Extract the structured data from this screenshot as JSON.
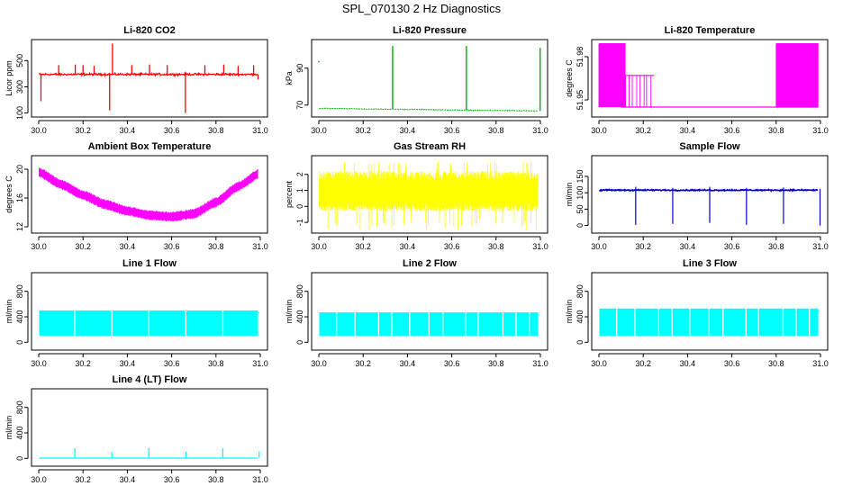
{
  "page_title": "SPL_070130  2 Hz Diagnostics",
  "chart_data": [
    {
      "id": "co2",
      "type": "line",
      "title": "Li-820 CO2",
      "ylabel": "Licor ppm",
      "color": "#ff0000",
      "xlim": [
        30.0,
        31.0
      ],
      "ylim": [
        90,
        640
      ],
      "x_ticks": [
        "30.0",
        "30.2",
        "30.4",
        "30.6",
        "30.8",
        "31.0"
      ],
      "y_ticks": [
        {
          "value": 100,
          "label": "100"
        },
        {
          "value": 300,
          "label": "300"
        },
        {
          "value": 500,
          "label": "500"
        }
      ],
      "baseline": 395,
      "noise": 12,
      "spikes": [
        {
          "x": 30.01,
          "y": 190
        },
        {
          "x": 30.09,
          "y": 465
        },
        {
          "x": 30.165,
          "y": 470
        },
        {
          "x": 30.2,
          "y": 465
        },
        {
          "x": 30.25,
          "y": 460
        },
        {
          "x": 30.32,
          "y": 120
        },
        {
          "x": 30.333,
          "y": 630
        },
        {
          "x": 30.42,
          "y": 465
        },
        {
          "x": 30.5,
          "y": 470
        },
        {
          "x": 30.58,
          "y": 465
        },
        {
          "x": 30.662,
          "y": 100
        },
        {
          "x": 30.75,
          "y": 465
        },
        {
          "x": 30.835,
          "y": 470
        },
        {
          "x": 30.9,
          "y": 460
        },
        {
          "x": 30.97,
          "y": 465
        },
        {
          "x": 30.99,
          "y": 355
        }
      ]
    },
    {
      "id": "pressure",
      "type": "line",
      "title": "Li-820 Pressure",
      "ylabel": "kPa",
      "color": "#00b000",
      "xlim": [
        30.0,
        31.0
      ],
      "ylim": [
        65,
        104
      ],
      "x_ticks": [
        "30.0",
        "30.2",
        "30.4",
        "30.6",
        "30.8",
        "31.0"
      ],
      "y_ticks": [
        {
          "value": 70,
          "label": "70"
        },
        {
          "value": 90,
          "label": "90"
        }
      ],
      "baseline_start": 68.2,
      "baseline_end": 66.8,
      "noise": 0.3,
      "spikes": [
        {
          "x": 30.333,
          "y": 102
        },
        {
          "x": 30.666,
          "y": 102
        },
        {
          "x": 30.999,
          "y": 101
        }
      ],
      "outliers": [
        {
          "x": 30.0,
          "y": 93.5
        }
      ]
    },
    {
      "id": "licor_temp",
      "type": "line",
      "title": "Li-820 Temperature",
      "ylabel": "degrees C",
      "color": "#ff00ff",
      "xlim": [
        30.0,
        31.0
      ],
      "ylim": [
        51.94,
        51.99
      ],
      "x_ticks": [
        "30.0",
        "30.2",
        "30.4",
        "30.6",
        "30.8",
        "31.0"
      ],
      "y_ticks": [
        {
          "value": 51.95,
          "label": "51.95"
        },
        {
          "value": 51.98,
          "label": "51.98"
        }
      ],
      "low": 51.945,
      "high": 51.989,
      "mid": 51.967,
      "dense_ranges": [
        [
          30.0,
          30.12
        ],
        [
          30.8,
          30.99
        ]
      ],
      "sparse_ranges": [
        [
          30.12,
          30.25
        ]
      ]
    },
    {
      "id": "ambient_temp",
      "type": "line",
      "title": "Ambient Box Temperature",
      "ylabel": "degrees C",
      "color": "#ff00ff",
      "xlim": [
        30.0,
        31.0
      ],
      "ylim": [
        11.5,
        21.5
      ],
      "x_ticks": [
        "30.0",
        "30.2",
        "30.4",
        "30.6",
        "30.8",
        "31.0"
      ],
      "y_ticks": [
        {
          "value": 12,
          "label": "12"
        },
        {
          "value": 16,
          "label": "16"
        },
        {
          "value": 20,
          "label": "20"
        }
      ],
      "curve": [
        {
          "x": 30.0,
          "y": 19.6
        },
        {
          "x": 30.1,
          "y": 17.9
        },
        {
          "x": 30.2,
          "y": 16.4
        },
        {
          "x": 30.3,
          "y": 15.1
        },
        {
          "x": 30.4,
          "y": 14.2
        },
        {
          "x": 30.5,
          "y": 13.6
        },
        {
          "x": 30.6,
          "y": 13.4
        },
        {
          "x": 30.7,
          "y": 13.8
        },
        {
          "x": 30.8,
          "y": 15.4
        },
        {
          "x": 30.9,
          "y": 17.6
        },
        {
          "x": 31.0,
          "y": 19.5
        }
      ],
      "band": 1.4
    },
    {
      "id": "gas_rh",
      "type": "line",
      "title": "Gas Stream RH",
      "ylabel": "percent",
      "color": "#ffff00",
      "xlim": [
        30.0,
        31.0
      ],
      "ylim": [
        -1.5,
        3.0
      ],
      "x_ticks": [
        "30.0",
        "30.2",
        "30.4",
        "30.6",
        "30.8",
        "31.0"
      ],
      "y_ticks": [
        {
          "value": -1,
          "label": "-1"
        },
        {
          "value": 0,
          "label": "0"
        },
        {
          "value": 1,
          "label": "1"
        },
        {
          "value": 2,
          "label": "2"
        }
      ],
      "center": 0.9,
      "spread": 1.0,
      "extreme": 1.9
    },
    {
      "id": "sample_flow",
      "type": "line",
      "title": "Sample Flow",
      "ylabel": "ml/min",
      "color": "#0000cc",
      "xlim": [
        30.0,
        31.0
      ],
      "ylim": [
        -15,
        205
      ],
      "x_ticks": [
        "30.0",
        "30.2",
        "30.4",
        "30.6",
        "30.8",
        "31.0"
      ],
      "y_ticks": [
        {
          "value": 0,
          "label": "0"
        },
        {
          "value": 50,
          "label": "50"
        },
        {
          "value": 100,
          "label": "100"
        },
        {
          "value": 150,
          "label": "150"
        }
      ],
      "baseline": 108,
      "noise": 3,
      "dips": [
        {
          "x": 30.166,
          "y": 2,
          "peak": 118
        },
        {
          "x": 30.333,
          "y": 5,
          "peak": 115
        },
        {
          "x": 30.5,
          "y": 8,
          "peak": 118
        },
        {
          "x": 30.666,
          "y": 2,
          "peak": 115
        },
        {
          "x": 30.833,
          "y": 5,
          "peak": 116
        },
        {
          "x": 30.998,
          "y": 0,
          "peak": 112
        }
      ]
    },
    {
      "id": "line1",
      "type": "line",
      "title": "Line 1 Flow",
      "ylabel": "ml/min",
      "color": "#00ffff",
      "xlim": [
        30.0,
        31.0
      ],
      "ylim": [
        -80,
        1050
      ],
      "x_ticks": [
        "30.0",
        "30.2",
        "30.4",
        "30.6",
        "30.8",
        "31.0"
      ],
      "y_ticks": [
        {
          "value": 0,
          "label": "0"
        },
        {
          "value": 400,
          "label": "400"
        },
        {
          "value": 800,
          "label": "800"
        }
      ],
      "band_low": 100,
      "band_high": 500,
      "gaps": [
        30.163,
        30.33,
        30.497,
        30.664,
        30.831
      ]
    },
    {
      "id": "line2",
      "type": "line",
      "title": "Line 2 Flow",
      "ylabel": "ml/min",
      "color": "#00ffff",
      "xlim": [
        30.0,
        31.0
      ],
      "ylim": [
        -80,
        1050
      ],
      "x_ticks": [
        "30.0",
        "30.2",
        "30.4",
        "30.6",
        "30.8",
        "31.0"
      ],
      "y_ticks": [
        {
          "value": 0,
          "label": "0"
        },
        {
          "value": 400,
          "label": "400"
        },
        {
          "value": 800,
          "label": "800"
        }
      ],
      "band_low": 100,
      "band_high": 470,
      "gaps": [
        30.08,
        30.163,
        30.27,
        30.33,
        30.41,
        30.497,
        30.56,
        30.664,
        30.72,
        30.831,
        30.89,
        30.95
      ]
    },
    {
      "id": "line3",
      "type": "line",
      "title": "Line 3 Flow",
      "ylabel": "ml/min",
      "color": "#00ffff",
      "xlim": [
        30.0,
        31.0
      ],
      "ylim": [
        -80,
        1050
      ],
      "x_ticks": [
        "30.0",
        "30.2",
        "30.4",
        "30.6",
        "30.8",
        "31.0"
      ],
      "y_ticks": [
        {
          "value": 0,
          "label": "0"
        },
        {
          "value": 400,
          "label": "400"
        },
        {
          "value": 800,
          "label": "800"
        }
      ],
      "band_low": 100,
      "band_high": 530,
      "gaps": [
        30.08,
        30.163,
        30.27,
        30.33,
        30.41,
        30.497,
        30.56,
        30.664,
        30.72,
        30.831,
        30.89,
        30.95
      ]
    },
    {
      "id": "line4",
      "type": "line",
      "title": "Line 4 (LT) Flow",
      "ylabel": "ml/min",
      "color": "#00ffff",
      "xlim": [
        30.0,
        31.0
      ],
      "ylim": [
        -80,
        1050
      ],
      "x_ticks": [
        "30.0",
        "30.2",
        "30.4",
        "30.6",
        "30.8",
        "31.0"
      ],
      "y_ticks": [
        {
          "value": 0,
          "label": "0"
        },
        {
          "value": 400,
          "label": "400"
        },
        {
          "value": 800,
          "label": "800"
        }
      ],
      "baseline": 5,
      "spikes": [
        {
          "x": 30.163,
          "y": 160
        },
        {
          "x": 30.33,
          "y": 100
        },
        {
          "x": 30.497,
          "y": 160
        },
        {
          "x": 30.664,
          "y": 100
        },
        {
          "x": 30.831,
          "y": 160
        },
        {
          "x": 30.995,
          "y": 110
        }
      ]
    }
  ]
}
